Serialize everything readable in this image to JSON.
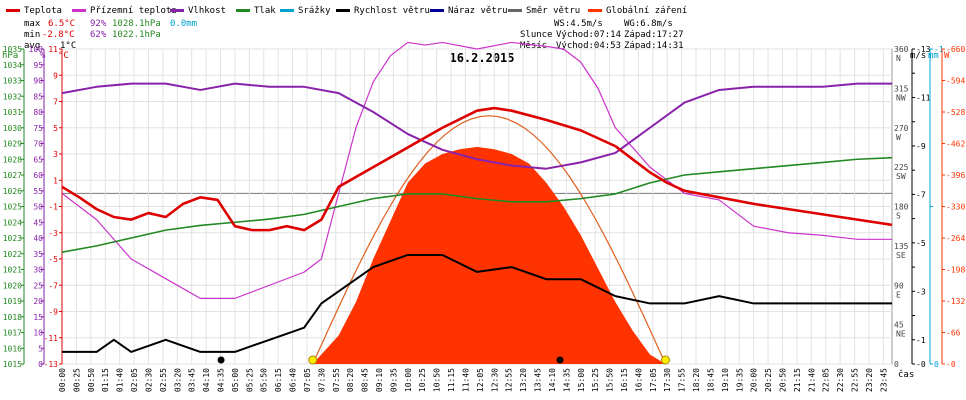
{
  "chart_data": {
    "type": "line",
    "title": "16.2.2015",
    "legend": [
      {
        "label": "Teplota",
        "color": "#dd0000"
      },
      {
        "label": "Přízemní teplota",
        "color": "#cc33cc"
      },
      {
        "label": "Vlhkost",
        "color": "#8822aa"
      },
      {
        "label": "Tlak",
        "color": "#228822"
      },
      {
        "label": "Srážky",
        "color": "#00a0d0"
      },
      {
        "label": "Rychlost větru",
        "color": "#000000"
      },
      {
        "label": "Náraz větru",
        "color": "#000099"
      },
      {
        "label": "Směr větru",
        "color": "#666666"
      },
      {
        "label": "Globální záření",
        "color": "#ff3300"
      }
    ],
    "stats": {
      "max": {
        "label": "max",
        "temp": "6.5°C",
        "hum": "92%",
        "press": "1028.1hPa",
        "rain": "0.0mm"
      },
      "min": {
        "label": "min",
        "temp": "-2.8°C",
        "hum": "62%",
        "press": "1022.1hPa"
      },
      "avg": {
        "label": "avg",
        "temp": "1°C"
      }
    },
    "info": {
      "ws": "WS:4.5m/s",
      "wg": "WG:6.8m/s",
      "sun_label": "Slunce",
      "sun_rise": "Východ:07:14",
      "sun_set": "Západ:17:27",
      "moon_label": "Měsíc",
      "moon_rise": "Východ:04:53",
      "moon_set": "Západ:14:31"
    },
    "x_label": "čas",
    "x_ticks": [
      "00:00",
      "00:25",
      "00:50",
      "01:15",
      "01:40",
      "02:05",
      "02:30",
      "02:55",
      "03:20",
      "03:45",
      "04:10",
      "04:35",
      "05:00",
      "05:25",
      "05:50",
      "06:15",
      "06:40",
      "07:05",
      "07:30",
      "07:55",
      "08:20",
      "08:45",
      "09:10",
      "09:35",
      "10:00",
      "10:25",
      "10:50",
      "11:15",
      "11:40",
      "12:05",
      "12:30",
      "12:55",
      "13:20",
      "13:45",
      "14:10",
      "14:35",
      "15:00",
      "15:25",
      "15:50",
      "16:15",
      "16:40",
      "17:05",
      "17:30",
      "17:55",
      "18:20",
      "18:45",
      "19:10",
      "19:35",
      "20:00",
      "20:25",
      "20:50",
      "21:15",
      "21:40",
      "22:05",
      "22:30",
      "22:55",
      "23:20",
      "23:45"
    ],
    "axes": {
      "hpa": {
        "unit": "hPa",
        "min": 1015,
        "max": 1035,
        "color": "#228822"
      },
      "pct": {
        "unit": "%",
        "min": 0,
        "max": 100,
        "color": "#8822aa"
      },
      "temp": {
        "unit": "°C",
        "min": -13,
        "max": 11,
        "color": "#dd0000"
      },
      "dir": {
        "unit": "",
        "ticks": [
          {
            "v": 0,
            "l": "0"
          },
          {
            "v": 45,
            "l": "45 NE"
          },
          {
            "v": 90,
            "l": "90 E"
          },
          {
            "v": 135,
            "l": "135 SE"
          },
          {
            "v": 180,
            "l": "180 S"
          },
          {
            "v": 225,
            "l": "225 SW"
          },
          {
            "v": 270,
            "l": "270 W"
          },
          {
            "v": 315,
            "l": "315 NW"
          },
          {
            "v": 360,
            "l": "360 N"
          }
        ],
        "max": 360
      },
      "ms": {
        "unit": "m/s",
        "min": 0,
        "max": 13,
        "color": "#000000"
      },
      "mm": {
        "unit": "mm",
        "min": 0,
        "max": 1,
        "color": "#00a0d0"
      },
      "wm2": {
        "unit": "W",
        "min": 0,
        "max": 660,
        "color": "#ff3300"
      }
    },
    "series": {
      "temperature_c": {
        "t": [
          0,
          0.5,
          1,
          1.5,
          2,
          2.5,
          3,
          3.5,
          4,
          4.5,
          5,
          5.5,
          6,
          6.5,
          7,
          7.5,
          8,
          9,
          10,
          11,
          12,
          12.5,
          13,
          14,
          15,
          16,
          17,
          17.5,
          18,
          19,
          20,
          21,
          22,
          23,
          24
        ],
        "v": [
          0.5,
          -0.3,
          -1.2,
          -1.8,
          -2.0,
          -1.5,
          -1.8,
          -0.8,
          -0.3,
          -0.5,
          -2.5,
          -2.8,
          -2.8,
          -2.5,
          -2.8,
          -2.0,
          0.5,
          2.0,
          3.5,
          5.0,
          6.3,
          6.5,
          6.3,
          5.6,
          4.8,
          3.6,
          1.6,
          0.8,
          0.2,
          -0.3,
          -0.8,
          -1.2,
          -1.6,
          -2.0,
          -2.4
        ]
      },
      "ground_temp_c": {
        "t": [
          0,
          1,
          2,
          3,
          4,
          4.5,
          5,
          6,
          7,
          7.5,
          8,
          8.5,
          9,
          9.5,
          10,
          10.5,
          11,
          12,
          13,
          14,
          14.5,
          15,
          15.5,
          16,
          16.5,
          17,
          17.5,
          18,
          19,
          20,
          21,
          22,
          23,
          24
        ],
        "v": [
          0,
          -2.0,
          -5.0,
          -6.5,
          -8.0,
          -8.0,
          -8.0,
          -7.0,
          -6.0,
          -5.0,
          0,
          5.0,
          8.5,
          10.5,
          11.5,
          11.3,
          11.5,
          11.0,
          11.5,
          11.2,
          11.0,
          10.0,
          8.0,
          5.0,
          3.5,
          2.0,
          1.0,
          0,
          -0.5,
          -2.5,
          -3.0,
          -3.2,
          -3.5,
          -3.5
        ]
      },
      "humidity_pct": {
        "t": [
          0,
          1,
          2,
          3,
          4,
          5,
          6,
          7,
          8,
          9,
          10,
          11,
          12,
          13,
          14,
          15,
          16,
          17,
          18,
          19,
          20,
          21,
          22,
          23,
          24
        ],
        "v": [
          86,
          88,
          89,
          89,
          87,
          89,
          88,
          88,
          86,
          80,
          73,
          68,
          65,
          63,
          62,
          64,
          67,
          75,
          83,
          87,
          88,
          88,
          88,
          89,
          89
        ]
      },
      "pressure_hpa": {
        "t": [
          0,
          1,
          2,
          3,
          4,
          5,
          6,
          7,
          8,
          9,
          10,
          11,
          12,
          13,
          14,
          15,
          16,
          17,
          18,
          19,
          20,
          21,
          22,
          23,
          24
        ],
        "v": [
          1022.1,
          1022.5,
          1023.0,
          1023.5,
          1023.8,
          1024.0,
          1024.2,
          1024.5,
          1025.0,
          1025.5,
          1025.8,
          1025.8,
          1025.5,
          1025.3,
          1025.3,
          1025.5,
          1025.8,
          1026.5,
          1027.0,
          1027.2,
          1027.4,
          1027.6,
          1027.8,
          1028.0,
          1028.1
        ]
      },
      "wind_speed_ms": {
        "t": [
          0,
          1,
          1.5,
          2,
          3,
          4,
          5,
          6,
          7,
          7.5,
          8,
          9,
          10,
          11,
          12,
          13,
          14,
          15,
          16,
          17,
          18,
          19,
          20,
          21,
          22,
          23,
          24
        ],
        "v": [
          0.5,
          0.5,
          1.0,
          0.5,
          1.0,
          0.5,
          0.5,
          1.0,
          1.5,
          2.5,
          3.0,
          4.0,
          4.5,
          4.5,
          3.8,
          4.0,
          3.5,
          3.5,
          2.8,
          2.5,
          2.5,
          2.8,
          2.5,
          2.5,
          2.5,
          2.5,
          2.5
        ]
      },
      "solar_wm2": {
        "t": [
          7.25,
          8,
          8.5,
          9,
          9.5,
          10,
          10.5,
          11,
          11.5,
          12,
          12.5,
          13,
          13.5,
          14,
          14.5,
          15,
          15.5,
          16,
          16.5,
          17,
          17.45
        ],
        "v": [
          0,
          60,
          130,
          220,
          300,
          380,
          420,
          440,
          450,
          455,
          450,
          440,
          420,
          380,
          330,
          270,
          200,
          130,
          70,
          20,
          0
        ]
      }
    },
    "moon_icon_hours": [
      4.6,
      14.4
    ],
    "sun_icon_hours": [
      7.25,
      17.45
    ]
  }
}
